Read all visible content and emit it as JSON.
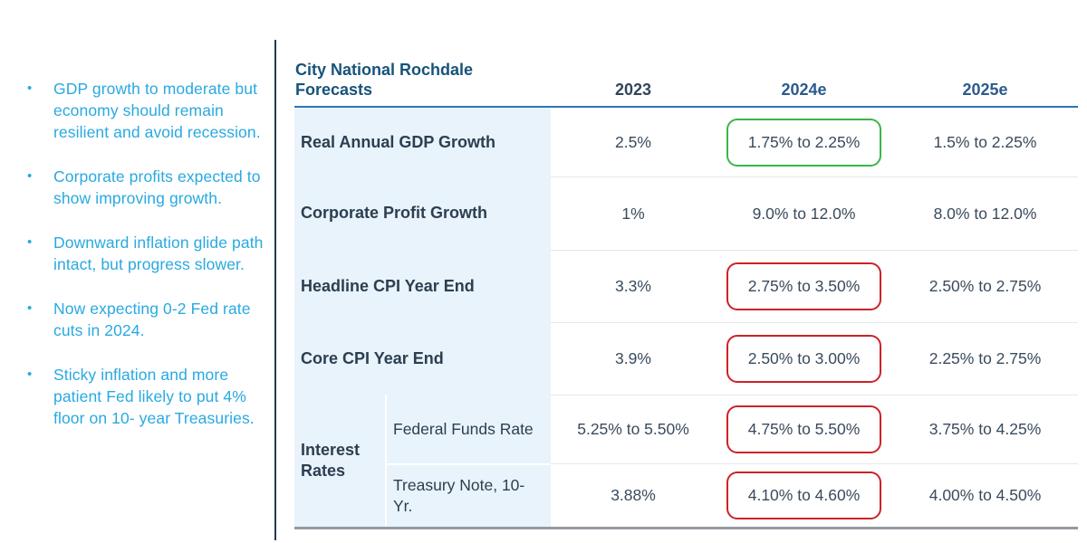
{
  "sidebar": {
    "bullets": [
      "GDP growth to moderate but economy should remain resilient and avoid recession.",
      "Corporate profits expected to show improving growth.",
      "Downward inflation glide path intact, but progress slower.",
      "Now expecting 0-2 Fed rate cuts in 2024.",
      "Sticky inflation and more patient Fed likely to put 4% floor on 10- year Treasuries."
    ]
  },
  "table": {
    "title": "City National Rochdale Forecasts",
    "columns": [
      "2023",
      "2024e",
      "2025e"
    ],
    "rows": [
      {
        "label": "Real Annual GDP Growth",
        "values": [
          "2.5%",
          "1.75% to 2.25%",
          "1.5% to 2.25%"
        ],
        "highlight_2024e": "green"
      },
      {
        "label": "Corporate Profit Growth",
        "values": [
          "1%",
          "9.0% to 12.0%",
          "8.0% to 12.0%"
        ],
        "highlight_2024e": null
      },
      {
        "label": "Headline CPI Year End",
        "values": [
          "3.3%",
          "2.75% to 3.50%",
          "2.50% to 2.75%"
        ],
        "highlight_2024e": "red"
      },
      {
        "label": "Core CPI Year End",
        "values": [
          "3.9%",
          "2.50% to 3.00%",
          "2.25% to 2.75%"
        ],
        "highlight_2024e": "red"
      },
      {
        "group": "Interest Rates",
        "label": "Federal Funds Rate",
        "values": [
          "5.25% to 5.50%",
          "4.75% to 5.50%",
          "3.75% to 4.25%"
        ],
        "highlight_2024e": "red"
      },
      {
        "label": "Treasury Note, 10-Yr.",
        "values": [
          "3.88%",
          "4.10% to 4.60%",
          "4.00% to 4.50%"
        ],
        "highlight_2024e": "red"
      }
    ]
  },
  "colors": {
    "bullet_text": "#29A9E1",
    "table_title": "#17537A",
    "year_actual_header": "#31455C",
    "year_estimate_header": "#2B5B8C",
    "row_label_text": "#2C3E50",
    "value_text": "#3A4A5C",
    "label_column_bg": "#E8F3FB",
    "header_rule": "#2E74B5",
    "bottom_rule": "#939AA0",
    "row_divider": "#E4E8EC",
    "green_highlight_border": "#3BB54A",
    "red_highlight_border": "#CB2229",
    "vertical_divider": "#1E3A56"
  }
}
